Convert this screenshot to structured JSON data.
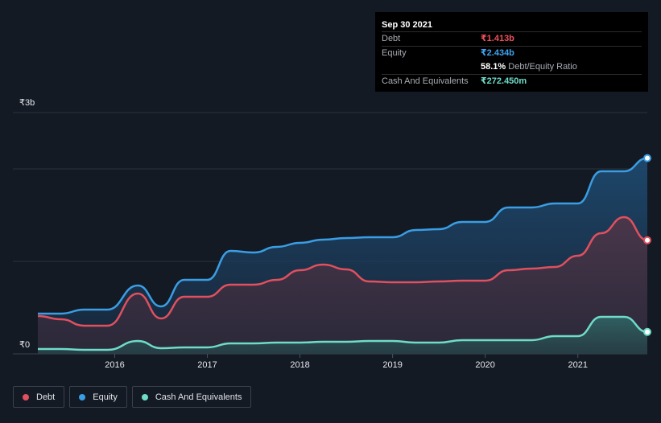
{
  "chart_data": {
    "type": "area",
    "currency_symbol": "₹",
    "ylim": [
      0,
      3.0
    ],
    "y_ticks": [
      {
        "value": 3.0,
        "label": "₹3b"
      },
      {
        "value": 0,
        "label": "₹0"
      }
    ],
    "x_range": [
      2015.17,
      2021.75
    ],
    "x_ticks": [
      {
        "value": 2016,
        "label": "2016"
      },
      {
        "value": 2017,
        "label": "2017"
      },
      {
        "value": 2018,
        "label": "2018"
      },
      {
        "value": 2019,
        "label": "2019"
      },
      {
        "value": 2020,
        "label": "2020"
      },
      {
        "value": 2021,
        "label": "2021"
      }
    ],
    "grid": true,
    "legend_position": "bottom-left",
    "series": [
      {
        "name": "Debt",
        "key": "debt",
        "color": "#e0505e",
        "points": [
          [
            2015.17,
            0.47
          ],
          [
            2015.42,
            0.43
          ],
          [
            2015.67,
            0.35
          ],
          [
            2015.92,
            0.35
          ],
          [
            2016.25,
            0.75
          ],
          [
            2016.5,
            0.44
          ],
          [
            2016.75,
            0.71
          ],
          [
            2017.0,
            0.71
          ],
          [
            2017.25,
            0.86
          ],
          [
            2017.5,
            0.86
          ],
          [
            2017.75,
            0.92
          ],
          [
            2018.0,
            1.04
          ],
          [
            2018.25,
            1.11
          ],
          [
            2018.5,
            1.05
          ],
          [
            2018.75,
            0.9
          ],
          [
            2019.0,
            0.89
          ],
          [
            2019.25,
            0.89
          ],
          [
            2019.5,
            0.9
          ],
          [
            2019.75,
            0.91
          ],
          [
            2020.0,
            0.91
          ],
          [
            2020.25,
            1.04
          ],
          [
            2020.5,
            1.06
          ],
          [
            2020.75,
            1.08
          ],
          [
            2021.0,
            1.22
          ],
          [
            2021.25,
            1.5
          ],
          [
            2021.5,
            1.7
          ],
          [
            2021.75,
            1.413
          ]
        ]
      },
      {
        "name": "Equity",
        "key": "equity",
        "color": "#3a9ee4",
        "points": [
          [
            2015.17,
            0.5
          ],
          [
            2015.42,
            0.5
          ],
          [
            2015.67,
            0.55
          ],
          [
            2015.92,
            0.55
          ],
          [
            2016.25,
            0.85
          ],
          [
            2016.5,
            0.59
          ],
          [
            2016.75,
            0.92
          ],
          [
            2017.0,
            0.92
          ],
          [
            2017.25,
            1.28
          ],
          [
            2017.5,
            1.26
          ],
          [
            2017.75,
            1.33
          ],
          [
            2018.0,
            1.38
          ],
          [
            2018.25,
            1.42
          ],
          [
            2018.5,
            1.44
          ],
          [
            2018.75,
            1.45
          ],
          [
            2019.0,
            1.45
          ],
          [
            2019.25,
            1.54
          ],
          [
            2019.5,
            1.55
          ],
          [
            2019.75,
            1.64
          ],
          [
            2020.0,
            1.64
          ],
          [
            2020.25,
            1.82
          ],
          [
            2020.5,
            1.82
          ],
          [
            2020.75,
            1.87
          ],
          [
            2021.0,
            1.87
          ],
          [
            2021.25,
            2.27
          ],
          [
            2021.5,
            2.27
          ],
          [
            2021.75,
            2.434
          ]
        ]
      },
      {
        "name": "Cash And Equivalents",
        "key": "cash",
        "color": "#6fdcc9",
        "points": [
          [
            2015.17,
            0.06
          ],
          [
            2015.42,
            0.06
          ],
          [
            2015.67,
            0.05
          ],
          [
            2015.92,
            0.05
          ],
          [
            2016.25,
            0.16
          ],
          [
            2016.5,
            0.07
          ],
          [
            2016.75,
            0.08
          ],
          [
            2017.0,
            0.08
          ],
          [
            2017.25,
            0.13
          ],
          [
            2017.5,
            0.13
          ],
          [
            2017.75,
            0.14
          ],
          [
            2018.0,
            0.14
          ],
          [
            2018.25,
            0.15
          ],
          [
            2018.5,
            0.15
          ],
          [
            2018.75,
            0.16
          ],
          [
            2019.0,
            0.16
          ],
          [
            2019.25,
            0.14
          ],
          [
            2019.5,
            0.14
          ],
          [
            2019.75,
            0.17
          ],
          [
            2020.0,
            0.17
          ],
          [
            2020.25,
            0.17
          ],
          [
            2020.5,
            0.17
          ],
          [
            2020.75,
            0.22
          ],
          [
            2021.0,
            0.22
          ],
          [
            2021.25,
            0.46
          ],
          [
            2021.5,
            0.46
          ],
          [
            2021.75,
            0.2725
          ]
        ]
      }
    ]
  },
  "tooltip": {
    "date": "Sep 30 2021",
    "debt_label": "Debt",
    "debt_value": "₹1.413b",
    "equity_label": "Equity",
    "equity_value": "₹2.434b",
    "ratio_value": "58.1%",
    "ratio_text": "Debt/Equity Ratio",
    "cash_label": "Cash And Equivalents",
    "cash_value": "₹272.450m"
  },
  "legend": [
    {
      "label": "Debt",
      "color": "#e0505e"
    },
    {
      "label": "Equity",
      "color": "#3a9ee4"
    },
    {
      "label": "Cash And Equivalents",
      "color": "#6fdcc9"
    }
  ]
}
